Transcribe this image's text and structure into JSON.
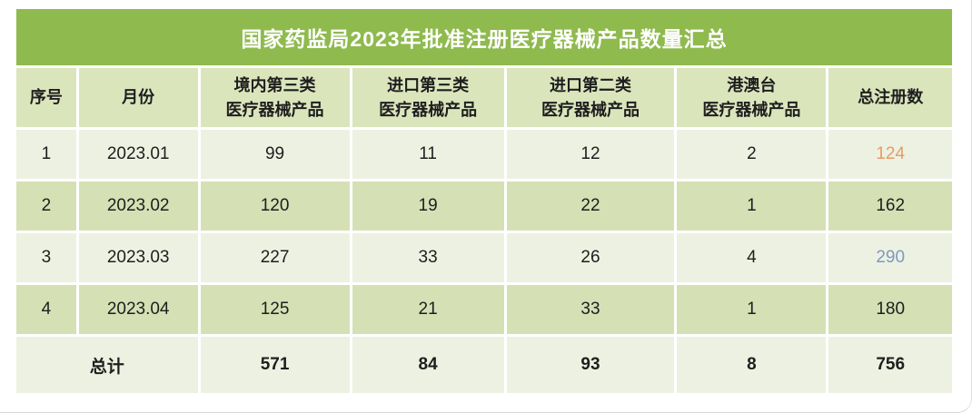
{
  "title": "国家药监局2023年批准注册医疗器械产品数量汇总",
  "colors": {
    "title-bar": "#8fba4e",
    "header-row": "#dbe5bc",
    "row-light": "#edf1e1",
    "row-dark": "#d5e0b5",
    "accent-orange": "#e69b68",
    "accent-blue": "#7d99c1"
  },
  "table": {
    "headers": [
      "序号",
      "月份",
      "境内第三类\n医疗器械产品",
      "进口第三类\n医疗器械产品",
      "进口第二类\n医疗器械产品",
      "港澳台\n医疗器械产品",
      "总注册数"
    ],
    "rows": [
      [
        "1",
        "2023.01",
        "99",
        "11",
        "12",
        "2",
        "124"
      ],
      [
        "2",
        "2023.02",
        "120",
        "19",
        "22",
        "1",
        "162"
      ],
      [
        "3",
        "2023.03",
        "227",
        "33",
        "26",
        "4",
        "290"
      ],
      [
        "4",
        "2023.04",
        "125",
        "21",
        "33",
        "1",
        "180"
      ]
    ],
    "total_row": [
      "总计",
      "571",
      "84",
      "93",
      "8",
      "756"
    ]
  },
  "chart_data": {
    "type": "table",
    "title": "国家药监局2023年批准注册医疗器械产品数量汇总",
    "columns": [
      "序号",
      "月份",
      "境内第三类医疗器械产品",
      "进口第三类医疗器械产品",
      "进口第二类医疗器械产品",
      "港澳台医疗器械产品",
      "总注册数"
    ],
    "rows": [
      [
        1,
        "2023.01",
        99,
        11,
        12,
        2,
        124
      ],
      [
        2,
        "2023.02",
        120,
        19,
        22,
        1,
        162
      ],
      [
        3,
        "2023.03",
        227,
        33,
        26,
        4,
        290
      ],
      [
        4,
        "2023.04",
        125,
        21,
        33,
        1,
        180
      ]
    ],
    "totals": {
      "label": "总计",
      "境内第三类医疗器械产品": 571,
      "进口第三类医疗器械产品": 84,
      "进口第二类医疗器械产品": 93,
      "港澳台医疗器械产品": 8,
      "总注册数": 756
    },
    "highlighted_cells": [
      {
        "row": "2023.01",
        "column": "总注册数",
        "value": 124,
        "color": "#e69b68"
      },
      {
        "row": "2023.03",
        "column": "总注册数",
        "value": 290,
        "color": "#7d99c1"
      }
    ]
  }
}
